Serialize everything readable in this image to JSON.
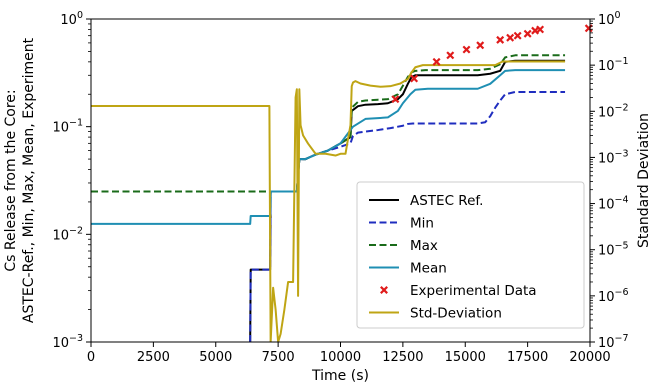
{
  "chart_data": {
    "type": "line",
    "title": "",
    "xlabel": "Time (s)",
    "ylabel_lines": [
      "Cs Release from the Core:",
      "ASTEC-Ref., Min, Max, Mean, Experiment"
    ],
    "y2label": "Standard Deviation",
    "xlim": [
      0,
      20000
    ],
    "ylim": [
      0.001,
      1
    ],
    "y2lim": [
      1e-07,
      1
    ],
    "yscale": "log",
    "y2scale": "log",
    "grid": false,
    "legend_position": "lower-right",
    "x_ticks": [
      "0",
      "2500",
      "5000",
      "7500",
      "10000",
      "12500",
      "15000",
      "17500",
      "20000"
    ],
    "x_tick_values": [
      0,
      2500,
      5000,
      7500,
      10000,
      12500,
      15000,
      17500,
      20000
    ],
    "y_ticks": [
      {
        "value": 0.001,
        "base": "10",
        "exp": "−3"
      },
      {
        "value": 0.01,
        "base": "10",
        "exp": "−2"
      },
      {
        "value": 0.1,
        "base": "10",
        "exp": "−1"
      },
      {
        "value": 1,
        "base": "10",
        "exp": "0"
      }
    ],
    "y2_ticks": [
      {
        "value": 1e-07,
        "base": "10",
        "exp": "−7"
      },
      {
        "value": 1e-06,
        "base": "10",
        "exp": "−6"
      },
      {
        "value": 1e-05,
        "base": "10",
        "exp": "−5"
      },
      {
        "value": 0.0001,
        "base": "10",
        "exp": "−4"
      },
      {
        "value": 0.001,
        "base": "10",
        "exp": "−3"
      },
      {
        "value": 0.01,
        "base": "10",
        "exp": "−2"
      },
      {
        "value": 0.1,
        "base": "10",
        "exp": "−1"
      },
      {
        "value": 1,
        "base": "10",
        "exp": "0"
      }
    ],
    "series": [
      {
        "name": "ASTEC Ref.",
        "axis": "left",
        "color": "#000000",
        "dash": "solid",
        "x": [
          6380,
          6400,
          7180,
          7200,
          7300,
          7400,
          8250,
          8350,
          8600,
          9000,
          9500,
          10000,
          10400,
          10450,
          10700,
          11000,
          11500,
          11900,
          12300,
          12500,
          12700,
          12850,
          13000,
          13400,
          14500,
          15500,
          16000,
          16400,
          16600,
          17000,
          18000,
          19000
        ],
        "y": [
          0.001,
          0.0047,
          0.0047,
          0.025,
          0.025,
          0.025,
          0.025,
          0.05,
          0.05,
          0.055,
          0.06,
          0.07,
          0.08,
          0.14,
          0.155,
          0.16,
          0.162,
          0.165,
          0.18,
          0.2,
          0.25,
          0.29,
          0.3,
          0.3,
          0.3,
          0.3,
          0.31,
          0.33,
          0.4,
          0.41,
          0.41,
          0.41
        ]
      },
      {
        "name": "Min",
        "axis": "left",
        "color": "#1f2dbf",
        "dash": "dashed",
        "x": [
          6380,
          6400,
          7180,
          7200,
          7300,
          7400,
          8250,
          8350,
          8600,
          9000,
          9500,
          10000,
          10400,
          10500,
          10700,
          11000,
          11500,
          12000,
          12500,
          12700,
          12900,
          13500,
          14500,
          15500,
          15800,
          16000,
          16200,
          16400,
          16600,
          17000,
          18000,
          19000
        ],
        "y": [
          0.001,
          0.0047,
          0.0047,
          0.025,
          0.025,
          0.025,
          0.025,
          0.05,
          0.05,
          0.055,
          0.06,
          0.065,
          0.07,
          0.082,
          0.088,
          0.09,
          0.093,
          0.097,
          0.102,
          0.106,
          0.107,
          0.107,
          0.107,
          0.107,
          0.11,
          0.125,
          0.15,
          0.175,
          0.2,
          0.21,
          0.21,
          0.21
        ]
      },
      {
        "name": "Max",
        "axis": "left",
        "color": "#1a6b1a",
        "dash": "dashed",
        "x": [
          0,
          7200,
          8250,
          8350,
          8600,
          9000,
          9500,
          10000,
          10400,
          10450,
          10700,
          11000,
          11500,
          11900,
          12300,
          12500,
          12700,
          12850,
          13000,
          13400,
          14500,
          15500,
          16000,
          16400,
          16600,
          17000,
          18000,
          19000
        ],
        "y": [
          0.025,
          0.025,
          0.025,
          0.05,
          0.05,
          0.055,
          0.06,
          0.07,
          0.08,
          0.15,
          0.17,
          0.175,
          0.178,
          0.18,
          0.2,
          0.24,
          0.29,
          0.32,
          0.33,
          0.335,
          0.335,
          0.335,
          0.345,
          0.38,
          0.44,
          0.46,
          0.46,
          0.46
        ]
      },
      {
        "name": "Mean",
        "axis": "left",
        "color": "#1f8fb3",
        "dash": "solid",
        "x": [
          0,
          6380,
          6400,
          7180,
          7200,
          7300,
          8250,
          8350,
          8600,
          9000,
          9500,
          10000,
          10500,
          11000,
          11500,
          11900,
          12300,
          12500,
          12800,
          13000,
          13500,
          14500,
          15500,
          16000,
          16400,
          16600,
          17000,
          18000,
          19000
        ],
        "y": [
          0.0125,
          0.0125,
          0.0148,
          0.0148,
          0.025,
          0.025,
          0.025,
          0.05,
          0.05,
          0.055,
          0.06,
          0.07,
          0.1,
          0.118,
          0.12,
          0.122,
          0.14,
          0.165,
          0.2,
          0.22,
          0.225,
          0.225,
          0.225,
          0.25,
          0.3,
          0.33,
          0.335,
          0.335,
          0.335
        ]
      },
      {
        "name": "Std-Deviation",
        "axis": "right",
        "color": "#bfa514",
        "dash": "solid",
        "x": [
          0,
          7150,
          7200,
          7300,
          7400,
          7500,
          7600,
          7750,
          7900,
          8000,
          8100,
          8200,
          8250,
          8300,
          8350,
          8400,
          8500,
          8700,
          9000,
          9400,
          9800,
          10000,
          10200,
          10300,
          10400,
          10450,
          10500,
          10600,
          10800,
          11200,
          11600,
          12000,
          12400,
          12700,
          12850,
          13000,
          13300,
          14500,
          15500,
          16000,
          16200,
          16500,
          17000,
          18000,
          19000
        ],
        "y": [
          0.013,
          0.013,
          1e-07,
          1.5e-06,
          5e-07,
          1e-07,
          1.5e-07,
          5e-07,
          2e-06,
          2e-06,
          2e-06,
          0.02,
          0.03,
          1e-06,
          0.03,
          0.005,
          0.003,
          0.002,
          0.0012,
          0.0012,
          0.0011,
          0.0012,
          0.0012,
          0.0025,
          0.005,
          0.035,
          0.042,
          0.045,
          0.04,
          0.036,
          0.034,
          0.035,
          0.04,
          0.05,
          0.07,
          0.09,
          0.1,
          0.1,
          0.1,
          0.1,
          0.1,
          0.12,
          0.12,
          0.12,
          0.12
        ]
      }
    ],
    "experimental": {
      "name": "Experimental Data",
      "axis": "left",
      "color": "#e01b1b",
      "marker": "x",
      "x": [
        12200,
        12950,
        13850,
        14400,
        15050,
        15600,
        16400,
        16800,
        17100,
        17500,
        17800,
        18000,
        19950
      ],
      "y": [
        0.18,
        0.28,
        0.4,
        0.46,
        0.52,
        0.57,
        0.64,
        0.67,
        0.7,
        0.73,
        0.78,
        0.8,
        0.82
      ]
    },
    "legend_order": [
      "ASTEC Ref.",
      "Min",
      "Max",
      "Mean",
      "Experimental Data",
      "Std-Deviation"
    ]
  }
}
